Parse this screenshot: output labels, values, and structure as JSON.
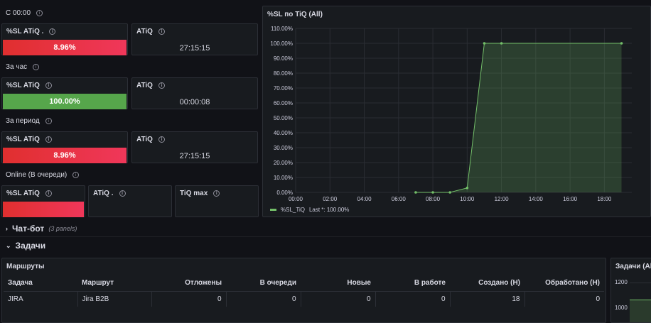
{
  "left": {
    "row1": {
      "title": "С 00:00",
      "sl_title": "%SL ATiQ .",
      "sl_value": "8.96%",
      "atiq_title": "ATiQ",
      "atiq_value": "27:15:15"
    },
    "row2": {
      "title": "За час",
      "sl_title": "%SL ATiQ",
      "sl_value": "100.00%",
      "atiq_title": "ATiQ",
      "atiq_value": "00:00:08"
    },
    "row3": {
      "title": "За период",
      "sl_title": "%SL ATiQ",
      "sl_value": "8.96%",
      "atiq_title": "ATiQ",
      "atiq_value": "27:15:15"
    },
    "row4": {
      "title": "Online (В очереди)",
      "sl_title": "%SL ATiQ",
      "atiq_title": "ATiQ .",
      "tiq_title": "TiQ max"
    }
  },
  "chart_panel": {
    "title": "%SL по TiQ (All)",
    "legend_label": "%SL_TiQ",
    "legend_last": "Last *: 100.00%",
    "color": "#73bf69"
  },
  "chart_data": {
    "type": "area",
    "title": "%SL по TiQ (All)",
    "x_ticks": [
      "00:00",
      "02:00",
      "04:00",
      "06:00",
      "08:00",
      "10:00",
      "12:00",
      "14:00",
      "16:00",
      "18:00"
    ],
    "y_ticks": [
      "0.00%",
      "10.00%",
      "20.00%",
      "30.00%",
      "40.00%",
      "50.00%",
      "60.00%",
      "70.00%",
      "80.00%",
      "90.00%",
      "100.00%",
      "110.00%"
    ],
    "ylim": [
      0,
      110
    ],
    "xlim": [
      0,
      19.6
    ],
    "series": [
      {
        "name": "%SL_TiQ",
        "x": [
          7,
          8,
          9,
          10,
          11,
          12,
          19
        ],
        "y": [
          0,
          0,
          0,
          3,
          100,
          100,
          100
        ]
      }
    ]
  },
  "chatbot": {
    "label": "Чат-бот",
    "count": "(3 panels)"
  },
  "tasks": {
    "label": "Задачи"
  },
  "routes": {
    "title": "Маршруты",
    "columns": [
      "Задача",
      "Маршрут",
      "Отложены",
      "В очереди",
      "Новые",
      "В работе",
      "Создано (Н)",
      "Обработано (Н)"
    ],
    "rows": [
      [
        "JIRA",
        "Jira B2B",
        "0",
        "0",
        "0",
        "0",
        "18",
        "0"
      ]
    ]
  },
  "tasks_chart": {
    "title": "Задачи (All",
    "y_ticks": [
      "1200",
      "1000"
    ]
  }
}
